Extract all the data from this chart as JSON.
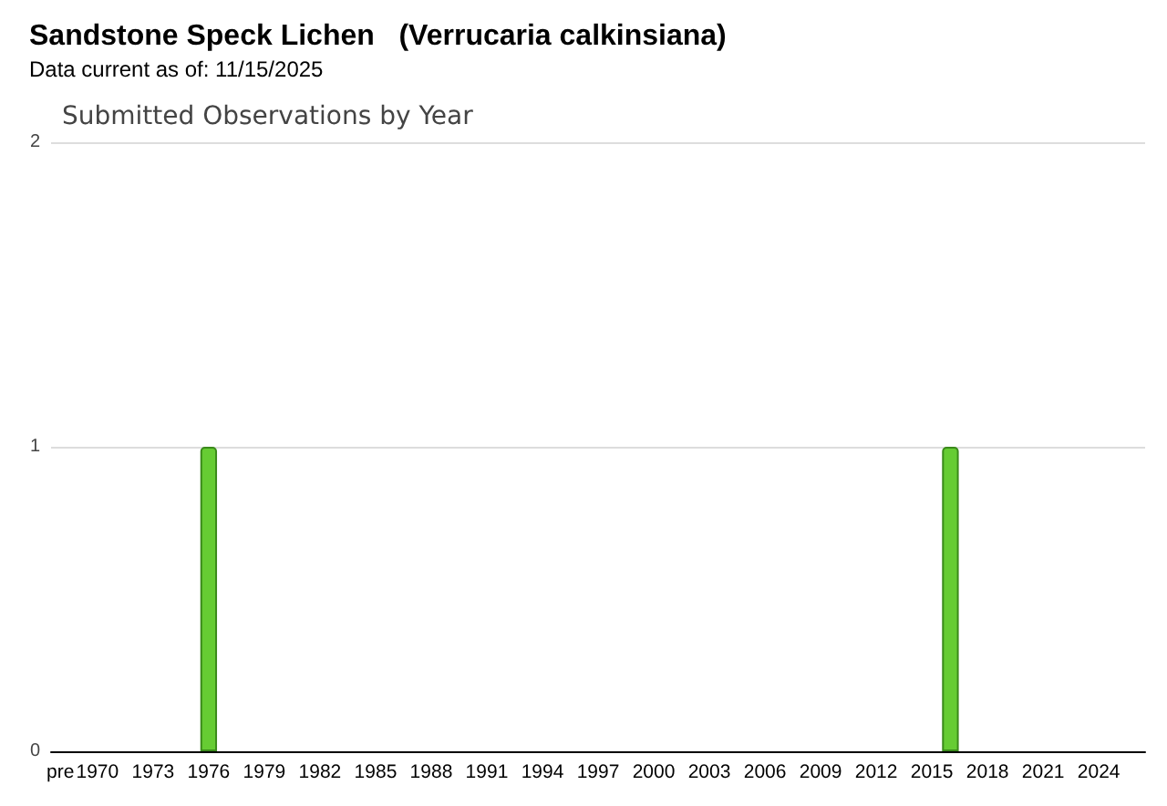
{
  "chart_data": {
    "type": "bar",
    "title": "Sandstone Speck Lichen   (Verrucaria calkinsiana)",
    "subtitle": "Data current as of: 11/15/2025",
    "annotations": [
      "Submitted Observations by Year"
    ],
    "categories": [
      "pre",
      null,
      "1970",
      null,
      null,
      "1973",
      null,
      null,
      "1976",
      null,
      null,
      "1979",
      null,
      null,
      "1982",
      null,
      null,
      "1985",
      null,
      null,
      "1988",
      null,
      null,
      "1991",
      null,
      null,
      "1994",
      null,
      null,
      "1997",
      null,
      null,
      "2000",
      null,
      null,
      "2003",
      null,
      null,
      "2006",
      null,
      null,
      "2009",
      null,
      null,
      "2012",
      null,
      null,
      "2015",
      null,
      null,
      "2018",
      null,
      null,
      "2021",
      null,
      null,
      "2024",
      null,
      null
    ],
    "values": [
      0,
      0,
      0,
      0,
      0,
      0,
      0,
      0,
      1,
      0,
      0,
      0,
      0,
      0,
      0,
      0,
      0,
      0,
      0,
      0,
      0,
      0,
      0,
      0,
      0,
      0,
      0,
      0,
      0,
      0,
      0,
      0,
      0,
      0,
      0,
      0,
      0,
      0,
      0,
      0,
      0,
      0,
      0,
      0,
      0,
      0,
      0,
      0,
      1,
      0,
      0,
      0,
      0,
      0,
      0,
      0,
      0,
      0,
      0
    ],
    "color": "#66cc33",
    "ylim": [
      0,
      2
    ],
    "yticks": [
      0,
      1,
      2
    ],
    "grid": "y"
  }
}
